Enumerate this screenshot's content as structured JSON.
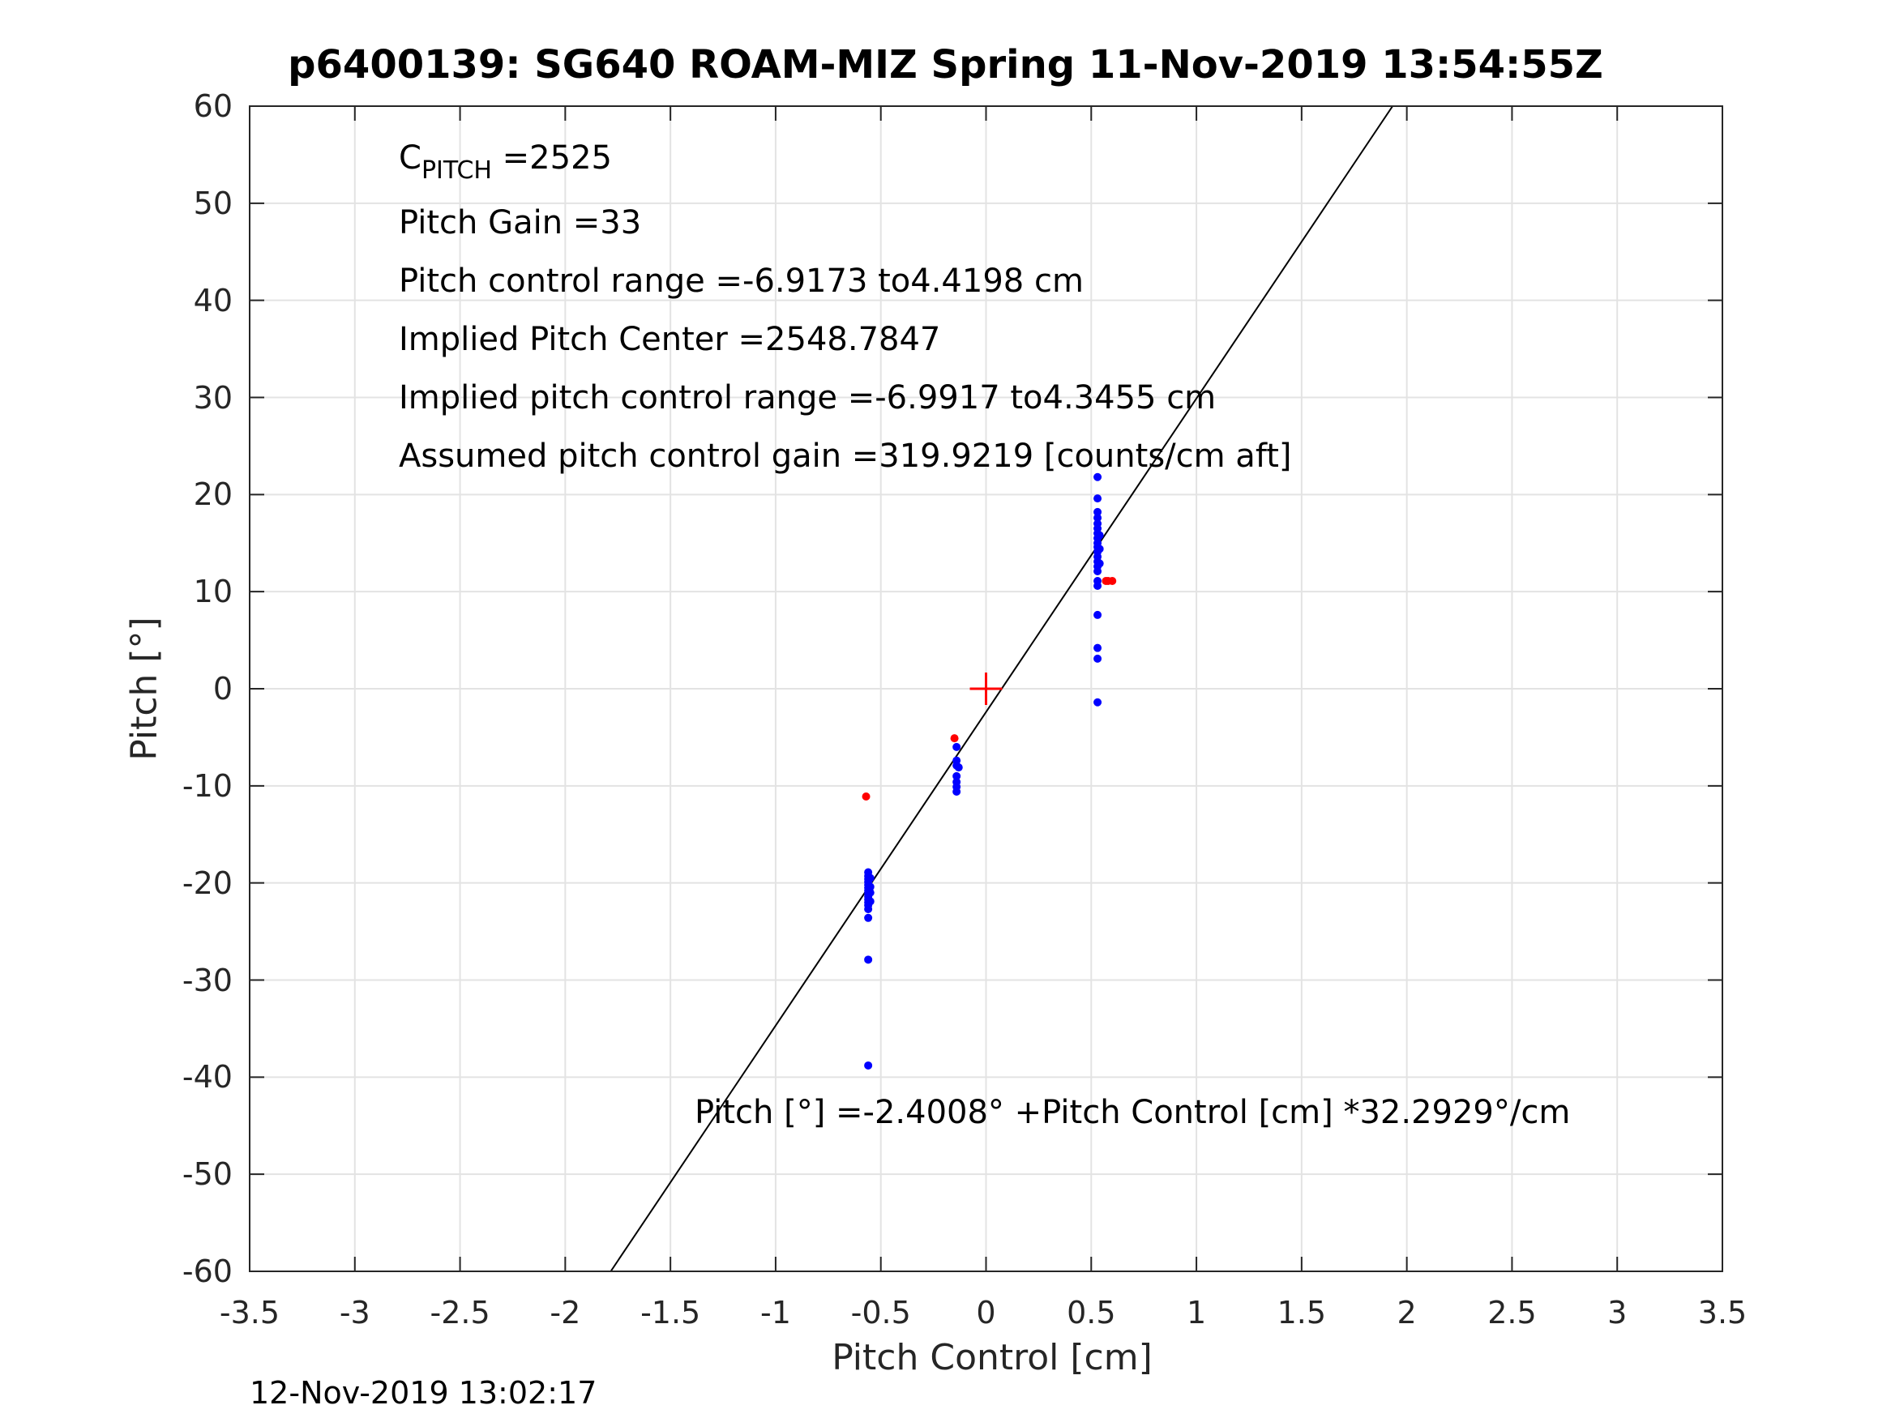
{
  "chart_data": {
    "type": "scatter",
    "title": "p6400139: SG640 ROAM-MIZ Spring 11-Nov-2019 13:54:55Z",
    "xlabel": "Pitch Control [cm]",
    "ylabel": "Pitch [°]",
    "xlim": [
      -3.5,
      3.5
    ],
    "ylim": [
      -60,
      60
    ],
    "x_ticks": [
      "-3.5",
      "-3",
      "-2.5",
      "-2",
      "-1.5",
      "-1",
      "-0.5",
      "0",
      "0.5",
      "1",
      "1.5",
      "2",
      "2.5",
      "3",
      "3.5"
    ],
    "y_ticks": [
      "60",
      "50",
      "40",
      "30",
      "20",
      "10",
      "0",
      "-10",
      "-20",
      "-30",
      "-40",
      "-50",
      "-60"
    ],
    "grid": true,
    "fit_line": {
      "intercept": -2.4008,
      "slope": 32.2929,
      "color": "#000000"
    },
    "center_marker": {
      "x": 0,
      "y": 0,
      "color": "#ff0000",
      "marker": "+"
    },
    "series": [
      {
        "color": "#0000ff",
        "points": [
          [
            -0.56,
            -18.9
          ],
          [
            -0.56,
            -19.3
          ],
          [
            -0.56,
            -19.6
          ],
          [
            -0.56,
            -19.9
          ],
          [
            -0.56,
            -20.2
          ],
          [
            -0.56,
            -20.5
          ],
          [
            -0.56,
            -20.8
          ],
          [
            -0.56,
            -21.1
          ],
          [
            -0.56,
            -21.4
          ],
          [
            -0.56,
            -21.7
          ],
          [
            -0.56,
            -22.0
          ],
          [
            -0.56,
            -22.3
          ],
          [
            -0.56,
            -22.7
          ],
          [
            -0.56,
            -23.6
          ],
          [
            -0.56,
            -27.9
          ],
          [
            -0.56,
            -38.8
          ],
          [
            -0.55,
            -19.5
          ],
          [
            -0.55,
            -20.4
          ],
          [
            -0.55,
            -21.0
          ],
          [
            -0.55,
            -21.9
          ],
          [
            -0.14,
            -6.0
          ],
          [
            -0.14,
            -7.4
          ],
          [
            -0.14,
            -7.9
          ],
          [
            -0.14,
            -9.0
          ],
          [
            -0.14,
            -9.6
          ],
          [
            -0.14,
            -10.1
          ],
          [
            -0.14,
            -10.6
          ],
          [
            -0.13,
            -8.1
          ],
          [
            0.53,
            21.8
          ],
          [
            0.53,
            19.6
          ],
          [
            0.53,
            18.2
          ],
          [
            0.53,
            17.6
          ],
          [
            0.53,
            17.0
          ],
          [
            0.53,
            16.5
          ],
          [
            0.53,
            16.0
          ],
          [
            0.53,
            15.5
          ],
          [
            0.53,
            15.0
          ],
          [
            0.53,
            14.6
          ],
          [
            0.53,
            14.1
          ],
          [
            0.53,
            13.6
          ],
          [
            0.53,
            13.1
          ],
          [
            0.53,
            12.6
          ],
          [
            0.53,
            12.1
          ],
          [
            0.53,
            11.1
          ],
          [
            0.53,
            10.6
          ],
          [
            0.53,
            7.6
          ],
          [
            0.53,
            4.2
          ],
          [
            0.53,
            3.1
          ],
          [
            0.53,
            -1.4
          ],
          [
            0.54,
            15.8
          ],
          [
            0.54,
            14.4
          ],
          [
            0.54,
            12.9
          ]
        ]
      },
      {
        "color": "#ff0000",
        "points": [
          [
            -0.57,
            -11.1
          ],
          [
            -0.15,
            -5.1
          ],
          [
            0.57,
            11.1
          ],
          [
            0.58,
            11.1
          ],
          [
            0.6,
            11.1
          ]
        ]
      }
    ],
    "annotations": {
      "cpitch_symbol": "C",
      "cpitch_subscript": "PITCH",
      "cpitch_value": " =2525",
      "pitch_gain": "Pitch Gain =33",
      "control_range": "Pitch control range =-6.9173 to4.4198 cm",
      "implied_center": "Implied Pitch Center =2548.7847",
      "implied_range": "Implied pitch control range =-6.9917 to4.3455 cm",
      "assumed_gain": "Assumed pitch control gain =319.9219 [counts/cm aft]",
      "equation": "Pitch [°] =-2.4008° +Pitch Control [cm] *32.2929°/cm"
    }
  },
  "timestamp": "12-Nov-2019 13:02:17"
}
